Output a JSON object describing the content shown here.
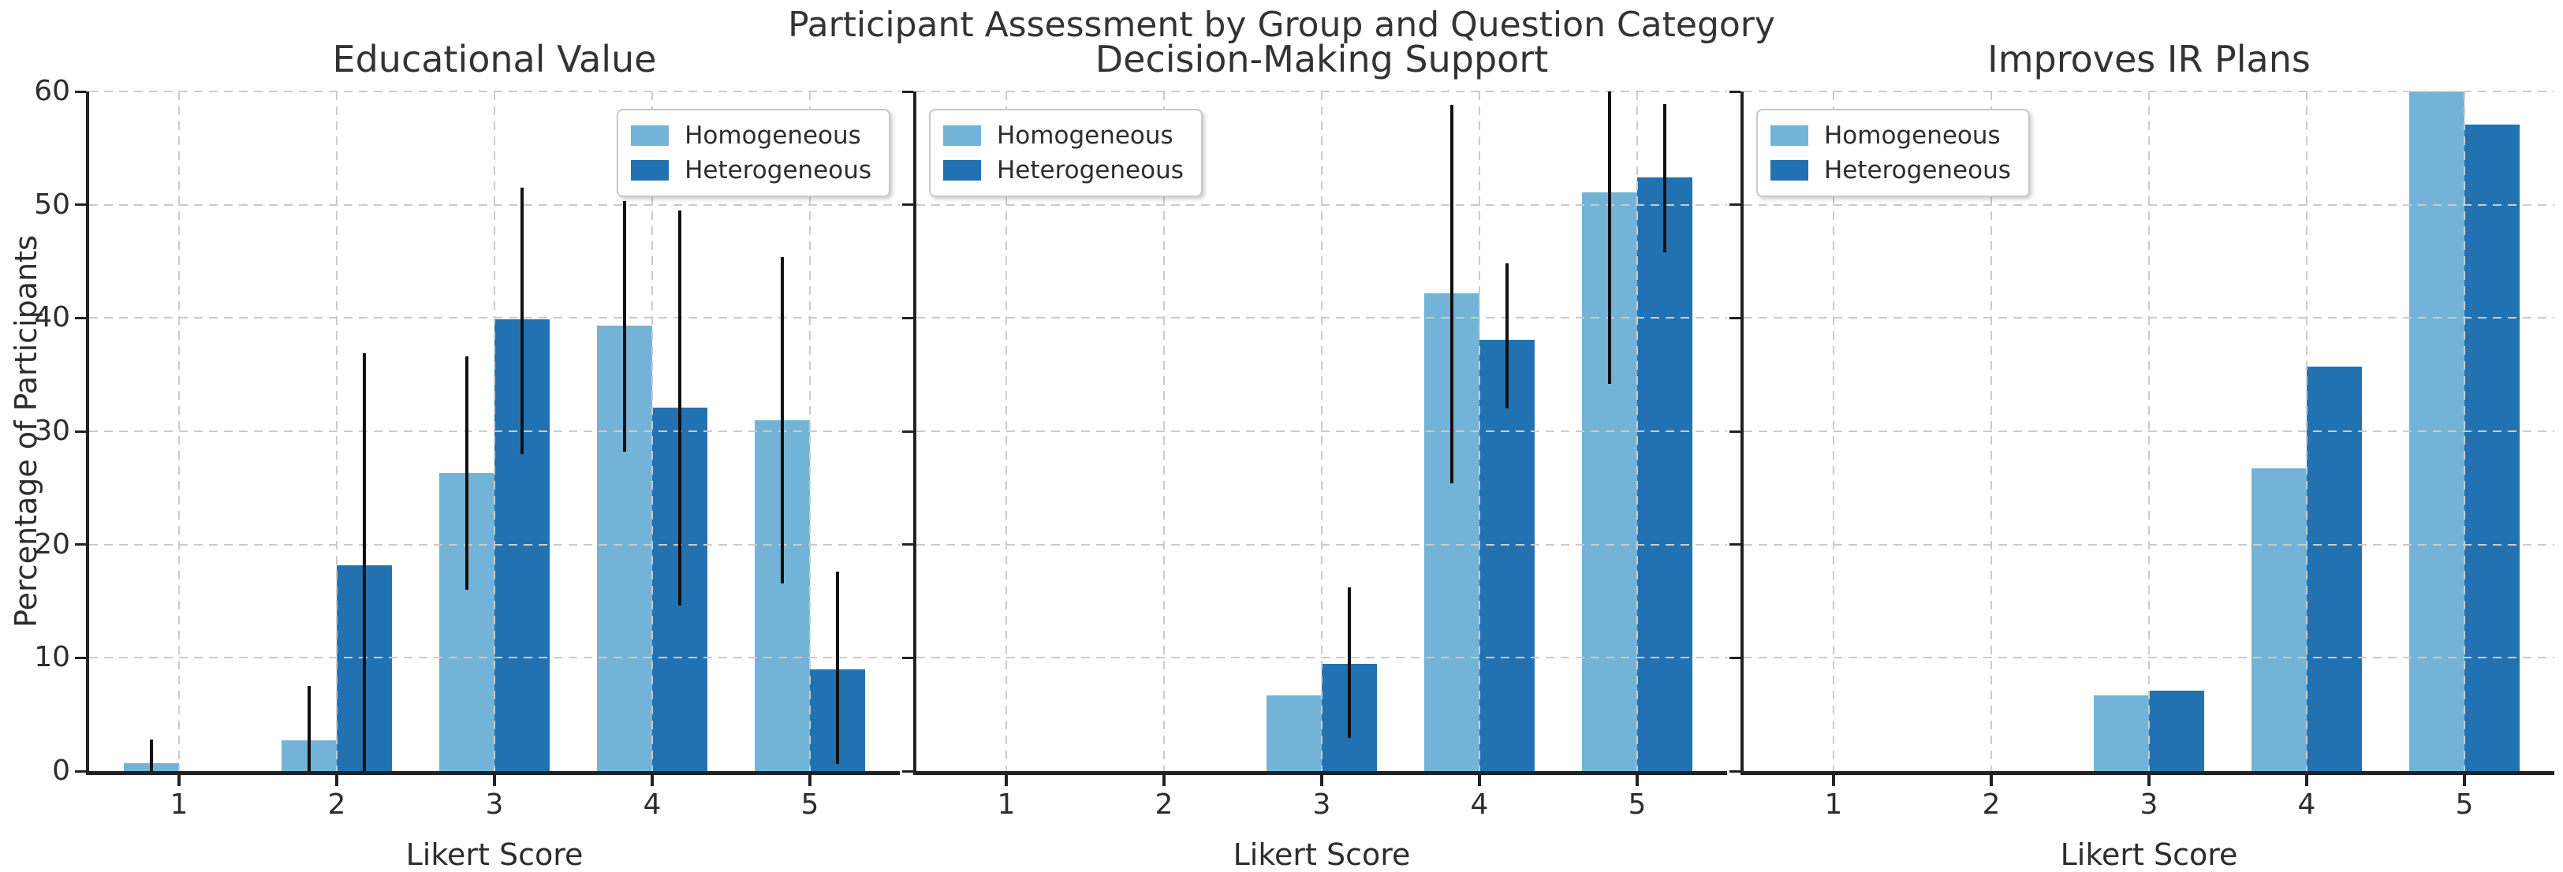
{
  "figure": {
    "suptitle": "Participant Assessment by Group and Question Category",
    "xlabel": "Likert Score",
    "ylabel": "Percentage of Participants"
  },
  "style": {
    "homogeneous_color": "#74b3d8",
    "heterogeneous_color": "#2272b2",
    "grid_color": "#cbcbcb",
    "spine_color": "#222222",
    "errorbar_color": "#111111",
    "text_color": "#2d2d2d"
  },
  "legend": {
    "items": [
      {
        "label": "Homogeneous",
        "color": "#74b3d8"
      },
      {
        "label": "Heterogeneous",
        "color": "#2272b2"
      }
    ]
  },
  "chart_data": [
    {
      "type": "bar",
      "title": "Educational Value",
      "xlabel": "Likert Score",
      "categories": [
        "1",
        "2",
        "3",
        "4",
        "5"
      ],
      "series": [
        {
          "name": "Homogeneous",
          "color": "#74b3d8",
          "values": [
            0.7,
            2.7,
            26.3,
            39.3,
            31.0
          ],
          "error_ranges": [
            [
              0,
              2.8
            ],
            [
              0,
              7.5
            ],
            [
              16.0,
              36.6
            ],
            [
              28.2,
              50.3
            ],
            [
              16.6,
              45.4
            ]
          ]
        },
        {
          "name": "Heterogeneous",
          "color": "#2272b2",
          "values": [
            0,
            18.2,
            39.9,
            32.1,
            9.0
          ],
          "error_ranges": [
            null,
            [
              0,
              36.9
            ],
            [
              28.0,
              51.5
            ],
            [
              14.6,
              49.5
            ],
            [
              0.6,
              17.6
            ]
          ]
        }
      ],
      "ylim": [
        0,
        60
      ],
      "yticks": [
        0,
        10,
        20,
        30,
        40,
        50,
        60
      ],
      "grid": true,
      "legend_position": "top-right",
      "show_y_tick_labels": true
    },
    {
      "type": "bar",
      "title": "Decision-Making Support",
      "xlabel": "Likert Score",
      "categories": [
        "1",
        "2",
        "3",
        "4",
        "5"
      ],
      "series": [
        {
          "name": "Homogeneous",
          "color": "#74b3d8",
          "values": [
            0,
            0,
            6.7,
            42.2,
            51.1
          ],
          "error_ranges": [
            null,
            null,
            null,
            [
              25.4,
              58.8
            ],
            [
              34.2,
              60.0
            ]
          ]
        },
        {
          "name": "Heterogeneous",
          "color": "#2272b2",
          "values": [
            0,
            0,
            9.5,
            38.1,
            52.4
          ],
          "error_ranges": [
            null,
            null,
            [
              2.9,
              16.2
            ],
            [
              32.0,
              44.8
            ],
            [
              45.8,
              58.9
            ]
          ]
        }
      ],
      "ylim": [
        0,
        60
      ],
      "yticks": [
        0,
        10,
        20,
        30,
        40,
        50,
        60
      ],
      "grid": true,
      "legend_position": "top-left",
      "show_y_tick_labels": false
    },
    {
      "type": "bar",
      "title": "Improves IR Plans",
      "xlabel": "Likert Score",
      "categories": [
        "1",
        "2",
        "3",
        "4",
        "5"
      ],
      "series": [
        {
          "name": "Homogeneous",
          "color": "#74b3d8",
          "values": [
            0,
            0,
            6.7,
            26.7,
            60.0
          ],
          "error_ranges": [
            null,
            null,
            null,
            null,
            null
          ]
        },
        {
          "name": "Heterogeneous",
          "color": "#2272b2",
          "values": [
            0,
            0,
            7.1,
            35.7,
            57.1
          ],
          "error_ranges": [
            null,
            null,
            null,
            null,
            null
          ]
        }
      ],
      "ylim": [
        0,
        60
      ],
      "yticks": [
        0,
        10,
        20,
        30,
        40,
        50,
        60
      ],
      "grid": true,
      "legend_position": "top-left",
      "show_y_tick_labels": false
    }
  ]
}
